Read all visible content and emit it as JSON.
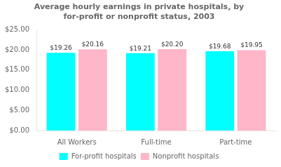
{
  "chart_data": {
    "type": "bar",
    "title": "Average hourly earnings in private hospitals, by\nfor-profit or nonprofit status, 2003",
    "categories": [
      "All Workers",
      "Full-time",
      "Part-time"
    ],
    "series": [
      {
        "name": "For-profit hospitals",
        "color": "#00FFFF",
        "values": [
          19.26,
          19.21,
          19.68
        ],
        "value_labels": [
          "$19.26",
          "$19.21",
          "$19.68"
        ]
      },
      {
        "name": "Nonprofit hospitals",
        "color": "#FFB6C8",
        "values": [
          20.16,
          20.2,
          19.95
        ],
        "value_labels": [
          "$20.16",
          "$20.20",
          "$19.95"
        ]
      }
    ],
    "ylim": [
      0,
      25
    ],
    "yticks": [
      {
        "value": 0,
        "label": "$0.00"
      },
      {
        "value": 5,
        "label": "$5.00"
      },
      {
        "value": 10,
        "label": "$10.00"
      },
      {
        "value": 15,
        "label": "$15.00"
      },
      {
        "value": 20,
        "label": "$20.00"
      },
      {
        "value": 25,
        "label": "$25.00"
      }
    ],
    "grid": false,
    "legend": "bottom",
    "data_labels": true
  }
}
